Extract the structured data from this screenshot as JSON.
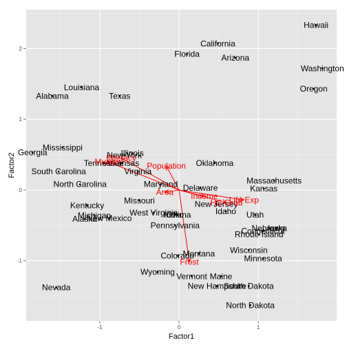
{
  "chart_data": {
    "type": "scatter",
    "title": "",
    "xlabel": "Factor1",
    "ylabel": "Factor2",
    "xlim": [
      -1.93,
      1.99
    ],
    "ylim": [
      -1.85,
      2.55
    ],
    "xticks": [
      -1,
      0,
      1
    ],
    "yticks": [
      -1,
      0,
      1,
      2
    ],
    "grid": true,
    "panel_bg": "#e5e5e5",
    "grid_major_color": "#ffffff",
    "grid_minor_color": "#f2f2f2",
    "point_color": "#000000",
    "vector_color": "#ff0000",
    "points": [
      {
        "label": "Hawaii",
        "x": 1.73,
        "y": 2.33
      },
      {
        "label": "California",
        "x": 0.49,
        "y": 2.07
      },
      {
        "label": "Florida",
        "x": 0.1,
        "y": 1.92
      },
      {
        "label": "Arizona",
        "x": 0.71,
        "y": 1.87
      },
      {
        "label": "Washington",
        "x": 1.81,
        "y": 1.72
      },
      {
        "label": "Oregon",
        "x": 1.7,
        "y": 1.43
      },
      {
        "label": "Louisiana",
        "x": -1.23,
        "y": 1.45
      },
      {
        "label": "Alabama",
        "x": -1.6,
        "y": 1.33
      },
      {
        "label": "Texas",
        "x": -0.75,
        "y": 1.33
      },
      {
        "label": "Mississippi",
        "x": -1.47,
        "y": 0.6
      },
      {
        "label": "Georgia",
        "x": -1.85,
        "y": 0.53
      },
      {
        "label": "Illinois",
        "x": -0.59,
        "y": 0.52
      },
      {
        "label": "New York",
        "x": -0.69,
        "y": 0.49
      },
      {
        "label": "Tennessee",
        "x": -0.95,
        "y": 0.38
      },
      {
        "label": "Arkansas",
        "x": -0.72,
        "y": 0.38
      },
      {
        "label": "Virginia",
        "x": -0.52,
        "y": 0.26
      },
      {
        "label": "South Carolina",
        "x": -1.52,
        "y": 0.26
      },
      {
        "label": "Oklahoma",
        "x": 0.45,
        "y": 0.38
      },
      {
        "label": "Maryland",
        "x": -0.23,
        "y": 0.08
      },
      {
        "label": "Delaware",
        "x": 0.27,
        "y": 0.03
      },
      {
        "label": "Massachusetts",
        "x": 1.2,
        "y": 0.13
      },
      {
        "label": "North Carolina",
        "x": -1.25,
        "y": 0.08
      },
      {
        "label": "Kansas",
        "x": 1.07,
        "y": 0.02
      },
      {
        "label": "Missouri",
        "x": -0.5,
        "y": -0.15
      },
      {
        "label": "New Jersey",
        "x": 0.47,
        "y": -0.2
      },
      {
        "label": "Kentucky",
        "x": -1.16,
        "y": -0.22
      },
      {
        "label": "Idaho",
        "x": 0.59,
        "y": -0.3
      },
      {
        "label": "West Virginia",
        "x": -0.32,
        "y": -0.32
      },
      {
        "label": "Ohio",
        "x": -0.05,
        "y": -0.35
      },
      {
        "label": "Indiana",
        "x": -0.02,
        "y": -0.35
      },
      {
        "label": "Utah",
        "x": 0.96,
        "y": -0.35
      },
      {
        "label": "Michigan",
        "x": -1.07,
        "y": -0.36
      },
      {
        "label": "Alaska",
        "x": -1.19,
        "y": -0.41
      },
      {
        "label": "New Mexico",
        "x": -0.88,
        "y": -0.4
      },
      {
        "label": "Pennsylvania",
        "x": -0.05,
        "y": -0.5
      },
      {
        "label": "Nebraska",
        "x": 1.14,
        "y": -0.54
      },
      {
        "label": "Iowa",
        "x": 1.23,
        "y": -0.54
      },
      {
        "label": "Connecticut",
        "x": 1.06,
        "y": -0.58
      },
      {
        "label": "Rhode Island",
        "x": 1.01,
        "y": -0.63
      },
      {
        "label": "Wisconsin",
        "x": 0.88,
        "y": -0.85
      },
      {
        "label": "Montana",
        "x": 0.25,
        "y": -0.9
      },
      {
        "label": "Colorado",
        "x": -0.02,
        "y": -0.93
      },
      {
        "label": "Minnesota",
        "x": 1.06,
        "y": -0.97
      },
      {
        "label": "Wyoming",
        "x": -0.27,
        "y": -1.16
      },
      {
        "label": "Vermont",
        "x": 0.16,
        "y": -1.22
      },
      {
        "label": "Maine",
        "x": 0.53,
        "y": -1.22
      },
      {
        "label": "Nevada",
        "x": -1.55,
        "y": -1.38
      },
      {
        "label": "New Hampshire",
        "x": 0.48,
        "y": -1.36
      },
      {
        "label": "South Dakota",
        "x": 0.88,
        "y": -1.36
      },
      {
        "label": "North Dakota",
        "x": 0.9,
        "y": -1.63
      }
    ],
    "vectors": [
      {
        "label": "Illiteracy",
        "x": -0.73,
        "y": 0.45
      },
      {
        "label": "Murder",
        "x": -0.9,
        "y": 0.4
      },
      {
        "label": "Population",
        "x": -0.16,
        "y": 0.34
      },
      {
        "label": "Area",
        "x": -0.18,
        "y": -0.03
      },
      {
        "label": "Income",
        "x": 0.32,
        "y": -0.09
      },
      {
        "label": "HS Grad",
        "x": 0.6,
        "y": -0.18
      },
      {
        "label": "Life Exp",
        "x": 0.82,
        "y": -0.14
      },
      {
        "label": "Frost",
        "x": 0.13,
        "y": -1.02
      }
    ]
  }
}
